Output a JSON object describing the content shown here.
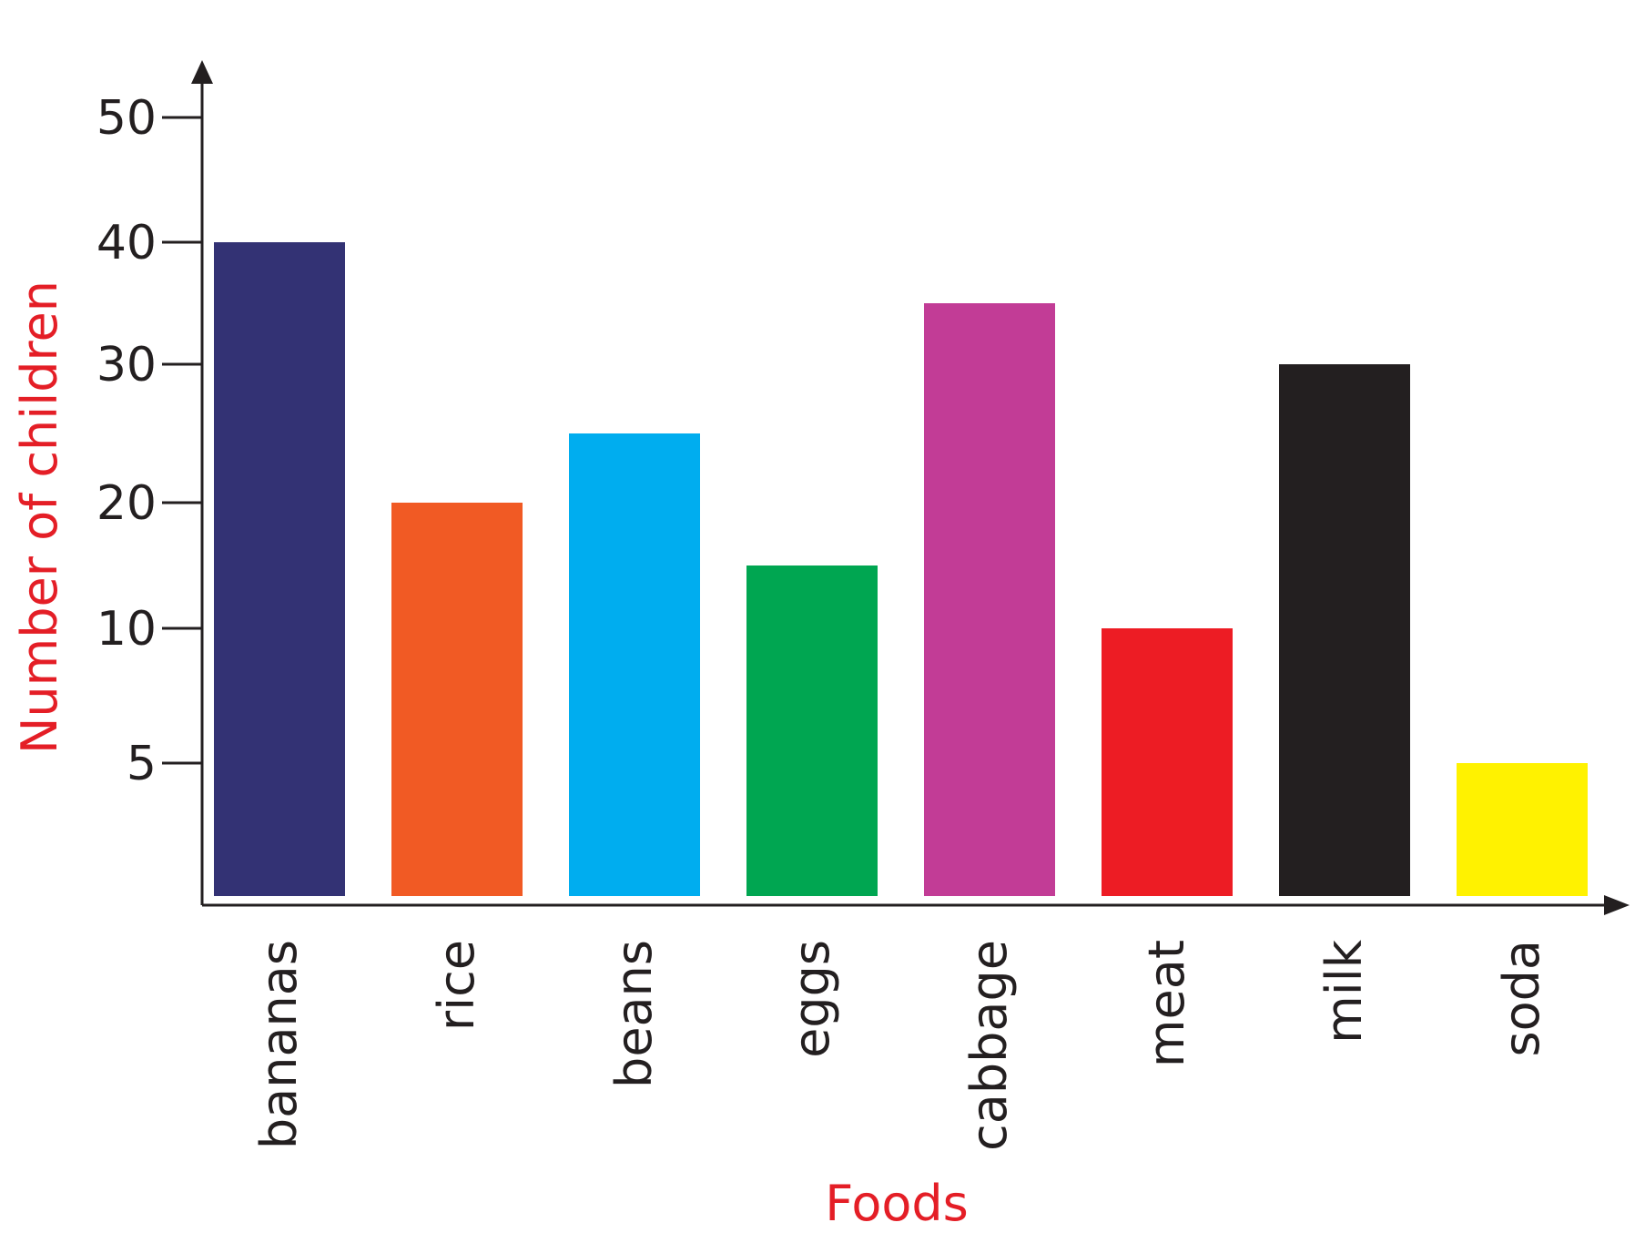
{
  "chart_data": {
    "type": "bar",
    "title": "",
    "xlabel": "Foods",
    "ylabel": "Number of children",
    "categories": [
      "bananas",
      "rice",
      "beans",
      "eggs",
      "cabbage",
      "meat",
      "milk",
      "soda"
    ],
    "values": [
      40,
      20,
      25,
      15,
      35,
      10,
      30,
      5
    ],
    "colors": [
      "#333274",
      "#f15a24",
      "#00adef",
      "#00a651",
      "#c23c96",
      "#ed1c24",
      "#231f20",
      "#fff200"
    ],
    "y_ticks": [
      {
        "value": 5,
        "label": "5"
      },
      {
        "value": 10,
        "label": "10"
      },
      {
        "value": 20,
        "label": "20"
      },
      {
        "value": 30,
        "label": "30"
      },
      {
        "value": 40,
        "label": "40"
      },
      {
        "value": 50,
        "label": "50"
      }
    ],
    "ylim": [
      0,
      50
    ],
    "grid": false,
    "legend": "none",
    "axis_color": "#231f20",
    "label_color": "#e41e26"
  }
}
